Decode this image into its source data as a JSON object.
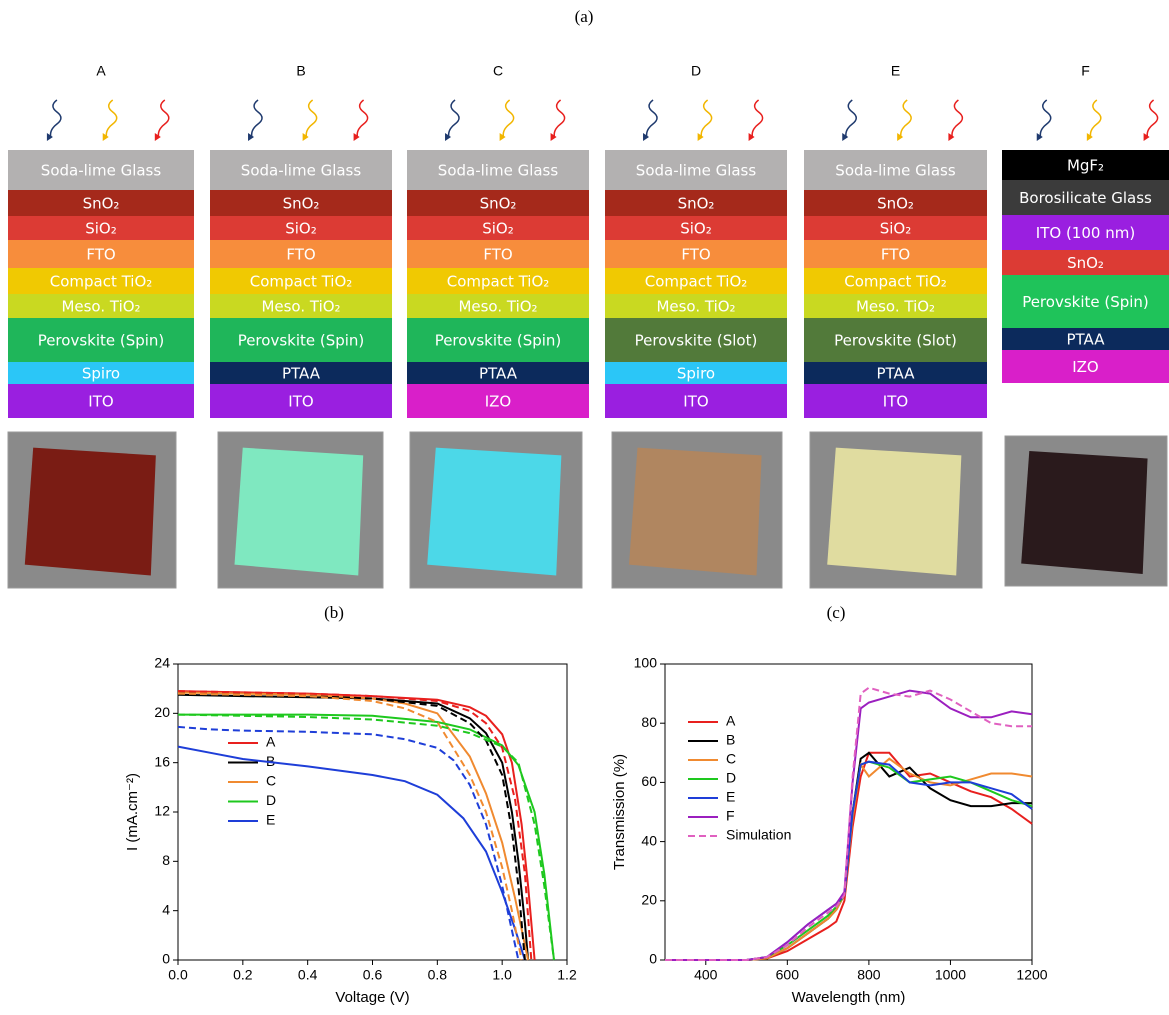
{
  "figure_labels": [
    "(a)",
    "(b)",
    "(c)"
  ],
  "panel_a": {
    "devices": [
      {
        "label": "A",
        "layers": [
          {
            "name": "Soda-lime Glass",
            "color": "#b3b1b1"
          },
          {
            "name": "SnO₂",
            "color": "#a5291b"
          },
          {
            "name": "SiO₂",
            "color": "#dc3b34"
          },
          {
            "name": "FTO",
            "color": "#f78d3c"
          },
          {
            "name": "Compact TiO₂",
            "color": "#f0c902"
          },
          {
            "name": "Meso. TiO₂",
            "color": "#c9d921"
          },
          {
            "name": "Perovskite (Spin)",
            "color": "#1fb65a"
          },
          {
            "name": "Spiro",
            "color": "#2bc6f7"
          },
          {
            "name": "ITO",
            "color": "#9a1fe0"
          }
        ]
      },
      {
        "label": "B",
        "layers": [
          {
            "name": "Soda-lime Glass",
            "color": "#b3b1b1"
          },
          {
            "name": "SnO₂",
            "color": "#a5291b"
          },
          {
            "name": "SiO₂",
            "color": "#dc3b34"
          },
          {
            "name": "FTO",
            "color": "#f78d3c"
          },
          {
            "name": "Compact TiO₂",
            "color": "#f0c902"
          },
          {
            "name": "Meso. TiO₂",
            "color": "#c9d921"
          },
          {
            "name": "Perovskite (Spin)",
            "color": "#1fb65a"
          },
          {
            "name": "PTAA",
            "color": "#0c2a5c"
          },
          {
            "name": "ITO",
            "color": "#9a1fe0"
          }
        ]
      },
      {
        "label": "C",
        "layers": [
          {
            "name": "Soda-lime Glass",
            "color": "#b3b1b1"
          },
          {
            "name": "SnO₂",
            "color": "#a5291b"
          },
          {
            "name": "SiO₂",
            "color": "#dc3b34"
          },
          {
            "name": "FTO",
            "color": "#f78d3c"
          },
          {
            "name": "Compact TiO₂",
            "color": "#f0c902"
          },
          {
            "name": "Meso. TiO₂",
            "color": "#c9d921"
          },
          {
            "name": "Perovskite (Spin)",
            "color": "#1fb65a"
          },
          {
            "name": "PTAA",
            "color": "#0c2a5c"
          },
          {
            "name": "IZO",
            "color": "#d91fc9"
          }
        ]
      },
      {
        "label": "D",
        "layers": [
          {
            "name": "Soda-lime Glass",
            "color": "#b3b1b1"
          },
          {
            "name": "SnO₂",
            "color": "#a5291b"
          },
          {
            "name": "SiO₂",
            "color": "#dc3b34"
          },
          {
            "name": "FTO",
            "color": "#f78d3c"
          },
          {
            "name": "Compact TiO₂",
            "color": "#f0c902"
          },
          {
            "name": "Meso. TiO₂",
            "color": "#c9d921"
          },
          {
            "name": "Perovskite (Slot)",
            "color": "#527a3a"
          },
          {
            "name": "Spiro",
            "color": "#2bc6f7"
          },
          {
            "name": "ITO",
            "color": "#9a1fe0"
          }
        ]
      },
      {
        "label": "E",
        "layers": [
          {
            "name": "Soda-lime Glass",
            "color": "#b3b1b1"
          },
          {
            "name": "SnO₂",
            "color": "#a5291b"
          },
          {
            "name": "SiO₂",
            "color": "#dc3b34"
          },
          {
            "name": "FTO",
            "color": "#f78d3c"
          },
          {
            "name": "Compact TiO₂",
            "color": "#f0c902"
          },
          {
            "name": "Meso. TiO₂",
            "color": "#c9d921"
          },
          {
            "name": "Perovskite (Slot)",
            "color": "#527a3a"
          },
          {
            "name": "PTAA",
            "color": "#0c2a5c"
          },
          {
            "name": "ITO",
            "color": "#9a1fe0"
          }
        ]
      },
      {
        "label": "F",
        "layers": [
          {
            "name": "MgF₂",
            "color": "#000000"
          },
          {
            "name": "Borosilicate Glass",
            "color": "#3b3b3b"
          },
          {
            "name": "ITO (100 nm)",
            "color": "#9a1fe0"
          },
          {
            "name": "SnO₂",
            "color": "#dc3b34"
          },
          {
            "name": "Perovskite (Spin)",
            "color": "#1fc35a"
          },
          {
            "name": "PTAA",
            "color": "#0c2a5c"
          },
          {
            "name": "IZO",
            "color": "#d91fc9"
          }
        ]
      }
    ]
  },
  "chart_data": [
    {
      "type": "line",
      "xlabel": "Voltage (V)",
      "ylabel": "I (mA.cm⁻²)",
      "xlim": [
        0,
        1.2
      ],
      "ylim": [
        0,
        24
      ],
      "xticks": [
        {
          "value": 0,
          "label": "0.0"
        },
        0.2,
        0.4,
        0.6,
        0.8,
        {
          "value": 1,
          "label": "1.0"
        },
        1.2
      ],
      "yticks": [
        0,
        4,
        8,
        12,
        16,
        20,
        24
      ],
      "series": [
        {
          "name": "A",
          "color": "#e8201e",
          "x": [
            0,
            0.2,
            0.4,
            0.6,
            0.8,
            0.9,
            0.95,
            1.0,
            1.03,
            1.06,
            1.08,
            1.1
          ],
          "values": [
            21.8,
            21.7,
            21.6,
            21.4,
            21.1,
            20.5,
            19.8,
            18.3,
            16,
            11,
            6,
            0
          ]
        },
        {
          "name": "B",
          "color": "#000000",
          "x": [
            0,
            0.2,
            0.4,
            0.6,
            0.8,
            0.9,
            0.95,
            1.0,
            1.03,
            1.05,
            1.07,
            1.08
          ],
          "values": [
            21.5,
            21.4,
            21.3,
            21.2,
            20.8,
            19.6,
            18.4,
            16,
            12,
            8,
            3,
            0
          ]
        },
        {
          "name": "C",
          "color": "#f08a30",
          "x": [
            0,
            0.2,
            0.4,
            0.6,
            0.7,
            0.8,
            0.9,
            0.95,
            1.0,
            1.04,
            1.08
          ],
          "values": [
            21.7,
            21.6,
            21.5,
            21.2,
            20.8,
            20,
            16.5,
            13.5,
            9.5,
            5,
            0
          ]
        },
        {
          "name": "D",
          "color": "#1ec81e",
          "x": [
            0,
            0.2,
            0.4,
            0.6,
            0.8,
            0.9,
            1.0,
            1.05,
            1.1,
            1.13,
            1.16
          ],
          "values": [
            19.9,
            19.9,
            19.9,
            19.8,
            19.3,
            18.7,
            17.4,
            15.8,
            12,
            7,
            0
          ]
        },
        {
          "name": "E",
          "color": "#1e3ed8",
          "x": [
            0,
            0.1,
            0.2,
            0.4,
            0.6,
            0.7,
            0.8,
            0.88,
            0.95,
            1.0,
            1.04,
            1.07
          ],
          "values": [
            17.3,
            16.8,
            16.3,
            15.7,
            15,
            14.5,
            13.4,
            11.5,
            8.8,
            5.5,
            2.5,
            0
          ]
        },
        {
          "color": "#e8201e",
          "style": "dashed",
          "x": [
            0,
            0.2,
            0.4,
            0.6,
            0.8,
            0.9,
            0.95,
            1.0,
            1.04,
            1.07,
            1.09
          ],
          "values": [
            21.8,
            21.7,
            21.6,
            21.4,
            21,
            20.2,
            19.2,
            17.2,
            13,
            7,
            0
          ]
        },
        {
          "color": "#000000",
          "style": "dashed",
          "x": [
            0,
            0.2,
            0.4,
            0.6,
            0.8,
            0.9,
            0.95,
            1.0,
            1.03,
            1.05,
            1.07
          ],
          "values": [
            21.6,
            21.5,
            21.4,
            21.2,
            20.6,
            19.2,
            17.8,
            15,
            10.5,
            6,
            0
          ]
        },
        {
          "color": "#f08a30",
          "style": "dashed",
          "x": [
            0,
            0.2,
            0.4,
            0.6,
            0.7,
            0.8,
            0.9,
            0.95,
            1.0,
            1.03,
            1.06
          ],
          "values": [
            21.6,
            21.5,
            21.4,
            21,
            20.4,
            19.3,
            15,
            12,
            7.5,
            4,
            0
          ]
        },
        {
          "color": "#1ec81e",
          "style": "dashed",
          "x": [
            0,
            0.2,
            0.4,
            0.6,
            0.8,
            0.9,
            1.0,
            1.05,
            1.1,
            1.13,
            1.16
          ],
          "values": [
            19.9,
            19.8,
            19.7,
            19.5,
            19,
            18.4,
            17.3,
            16,
            11,
            6,
            0
          ]
        },
        {
          "color": "#1e3ed8",
          "style": "dashed",
          "x": [
            0,
            0.1,
            0.2,
            0.4,
            0.5,
            0.6,
            0.7,
            0.8,
            0.85,
            0.9,
            0.95,
            1.0,
            1.05
          ],
          "values": [
            18.9,
            18.7,
            18.6,
            18.5,
            18.4,
            18.3,
            17.9,
            17.2,
            16.2,
            14.2,
            11,
            6,
            0
          ]
        }
      ]
    },
    {
      "type": "line",
      "xlabel": "Wavelength (nm)",
      "ylabel": "Transmission (%)",
      "xlim": [
        300,
        1200
      ],
      "ylim": [
        0,
        100
      ],
      "xticks": [
        400,
        600,
        800,
        1000,
        1200
      ],
      "yticks": [
        0,
        20,
        40,
        60,
        80,
        100
      ],
      "x": [
        300,
        400,
        500,
        550,
        600,
        650,
        700,
        720,
        740,
        760,
        780,
        800,
        850,
        900,
        950,
        1000,
        1050,
        1100,
        1150,
        1200
      ],
      "series": [
        {
          "name": "A",
          "color": "#e8201e",
          "values": [
            0,
            0,
            0,
            0.5,
            3,
            7,
            11,
            13,
            20,
            45,
            62,
            70,
            70,
            62,
            63,
            60,
            57,
            55,
            51,
            46
          ]
        },
        {
          "name": "B",
          "color": "#000000",
          "values": [
            0,
            0,
            0,
            0.5,
            4,
            9,
            14,
            17,
            22,
            50,
            68,
            70,
            62,
            65,
            58,
            54,
            52,
            52,
            53,
            53
          ]
        },
        {
          "name": "C",
          "color": "#f08a30",
          "values": [
            0,
            0,
            0,
            0.5,
            4,
            9,
            14,
            17,
            22,
            48,
            66,
            62,
            68,
            63,
            60,
            59,
            61,
            63,
            63,
            62
          ]
        },
        {
          "name": "D",
          "color": "#1ec81e",
          "values": [
            0,
            0,
            0,
            1,
            5,
            10,
            15,
            18,
            22,
            50,
            66,
            67,
            65,
            60,
            61,
            62,
            60,
            57,
            54,
            52
          ]
        },
        {
          "name": "E",
          "color": "#1e3ed8",
          "values": [
            0,
            0,
            0,
            1,
            6,
            12,
            17,
            19,
            22,
            50,
            66,
            67,
            66,
            60,
            59,
            60,
            60,
            58,
            56,
            51
          ]
        },
        {
          "name": "F",
          "color": "#9b1fbf",
          "values": [
            0,
            0,
            0,
            1,
            6,
            12,
            17,
            19,
            23,
            60,
            85,
            87,
            89,
            91,
            90,
            85,
            82,
            82,
            84,
            83
          ]
        },
        {
          "name": "Simulation",
          "color": "#e060c0",
          "style": "dashed",
          "values": [
            0,
            0,
            0,
            1,
            5,
            11,
            16,
            18,
            22,
            62,
            90,
            92,
            90,
            89,
            91,
            88,
            84,
            80,
            79,
            79
          ]
        }
      ]
    }
  ]
}
